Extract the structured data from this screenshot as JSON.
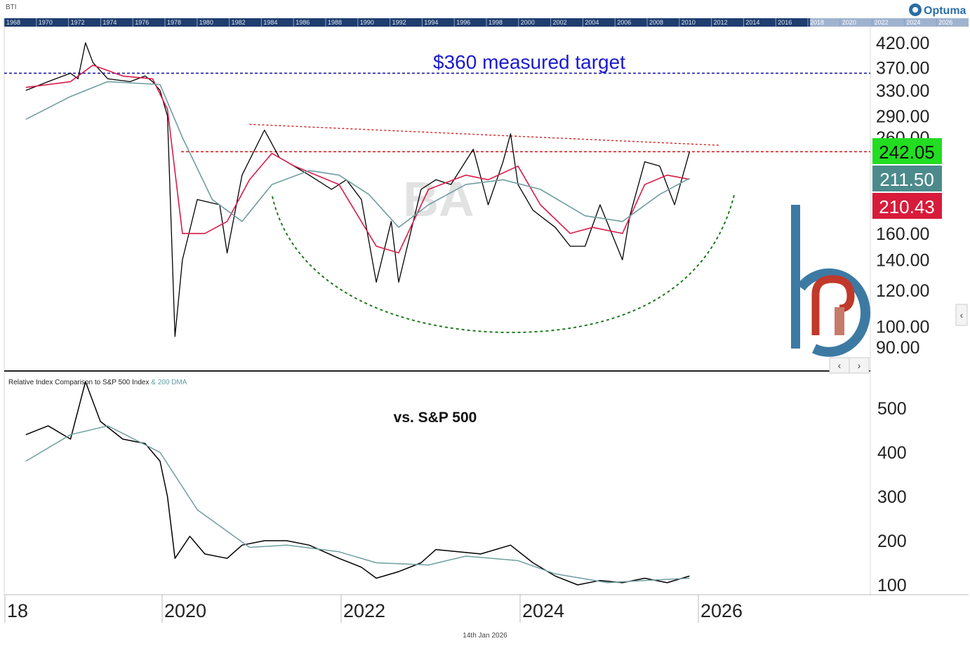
{
  "header": {
    "symbol": "BTI",
    "brand": "Optuma",
    "overview_years": [
      "1968",
      "1970",
      "1972",
      "1974",
      "1976",
      "1978",
      "1980",
      "1982",
      "1984",
      "1986",
      "1988",
      "1990",
      "1992",
      "1994",
      "1996",
      "1998",
      "2000",
      "2002",
      "2004",
      "2006",
      "2008",
      "2010",
      "2012",
      "2014",
      "2016",
      "2018",
      "2020",
      "2022",
      "2024",
      "2026"
    ]
  },
  "watermark": "BA",
  "annotations": {
    "target_label": "$360 measured target",
    "comparison_label": "vs. S&P 500"
  },
  "lower_panel": {
    "title": "Relative Index Comparison to S&P 500 Index",
    "title_suffix": "& 200 DMA"
  },
  "footer": {
    "date": "14th Jan 2026"
  },
  "colors": {
    "price": "#000000",
    "ma_short": "#d81b4a",
    "ma_long": "#6f9ea0",
    "target_line": "#1a1aa8",
    "resistance": "#d42020",
    "cup": "#1f7a1f",
    "badge_last": "#22dd22",
    "badge_ma_long": "#4d8a8c",
    "badge_ma_short": "#d81b3a",
    "logo_blue": "#3d7aa3",
    "logo_red": "#c0392b"
  },
  "chart_data": [
    {
      "type": "line",
      "panel": "price",
      "yscale": "log",
      "ylim": [
        85,
        445
      ],
      "x_ticks": [
        "18",
        "2020",
        "2022",
        "2024",
        "2026"
      ],
      "y_ticks": [
        420,
        370,
        330,
        290,
        260,
        160,
        140,
        120,
        100,
        90
      ],
      "y_tick_labels": [
        "420.00",
        "370.00",
        "330.00",
        "290.00",
        "260.00",
        "160.00",
        "140.00",
        "120.00",
        "100.00",
        "90.00"
      ],
      "last_values": [
        {
          "label": "242.05",
          "value": 242.05,
          "role": "last"
        },
        {
          "label": "211.50",
          "value": 211.5,
          "role": "ma_long"
        },
        {
          "label": "210.43",
          "value": 210.43,
          "role": "ma_short"
        }
      ],
      "series": [
        {
          "role": "price",
          "points": [
            [
              "2018-07",
              330
            ],
            [
              "2018-10",
              345
            ],
            [
              "2019-01",
              360
            ],
            [
              "2019-02",
              350
            ],
            [
              "2019-03",
              420
            ],
            [
              "2019-04",
              380
            ],
            [
              "2019-06",
              350
            ],
            [
              "2019-09",
              345
            ],
            [
              "2019-11",
              355
            ],
            [
              "2019-12",
              345
            ],
            [
              "2020-01",
              330
            ],
            [
              "2020-02",
              290
            ],
            [
              "2020-03",
              95
            ],
            [
              "2020-04",
              140
            ],
            [
              "2020-06",
              190
            ],
            [
              "2020-09",
              185
            ],
            [
              "2020-10",
              145
            ],
            [
              "2020-12",
              215
            ],
            [
              "2021-03",
              270
            ],
            [
              "2021-05",
              235
            ],
            [
              "2021-09",
              215
            ],
            [
              "2021-12",
              200
            ],
            [
              "2022-02",
              210
            ],
            [
              "2022-04",
              190
            ],
            [
              "2022-06",
              125
            ],
            [
              "2022-08",
              170
            ],
            [
              "2022-09",
              125
            ],
            [
              "2022-12",
              200
            ],
            [
              "2023-02",
              210
            ],
            [
              "2023-04",
              205
            ],
            [
              "2023-07",
              245
            ],
            [
              "2023-09",
              185
            ],
            [
              "2023-11",
              230
            ],
            [
              "2023-12",
              265
            ],
            [
              "2024-01",
              205
            ],
            [
              "2024-03",
              180
            ],
            [
              "2024-06",
              165
            ],
            [
              "2024-08",
              150
            ],
            [
              "2024-10",
              150
            ],
            [
              "2024-12",
              185
            ],
            [
              "2025-03",
              140
            ],
            [
              "2025-04",
              175
            ],
            [
              "2025-06",
              230
            ],
            [
              "2025-08",
              225
            ],
            [
              "2025-10",
              185
            ],
            [
              "2025-12",
              242
            ]
          ]
        },
        {
          "role": "ma_short",
          "points": [
            [
              "2018-07",
              335
            ],
            [
              "2019-01",
              345
            ],
            [
              "2019-04",
              375
            ],
            [
              "2019-08",
              355
            ],
            [
              "2019-12",
              350
            ],
            [
              "2020-02",
              300
            ],
            [
              "2020-04",
              160
            ],
            [
              "2020-07",
              160
            ],
            [
              "2020-10",
              170
            ],
            [
              "2021-01",
              210
            ],
            [
              "2021-04",
              240
            ],
            [
              "2021-07",
              225
            ],
            [
              "2022-01",
              205
            ],
            [
              "2022-06",
              150
            ],
            [
              "2022-09",
              145
            ],
            [
              "2023-01",
              200
            ],
            [
              "2023-06",
              215
            ],
            [
              "2023-09",
              210
            ],
            [
              "2024-01",
              225
            ],
            [
              "2024-04",
              185
            ],
            [
              "2024-08",
              160
            ],
            [
              "2024-11",
              165
            ],
            [
              "2025-03",
              160
            ],
            [
              "2025-06",
              205
            ],
            [
              "2025-09",
              215
            ],
            [
              "2025-12",
              210.43
            ]
          ]
        },
        {
          "role": "ma_long",
          "points": [
            [
              "2018-07",
              285
            ],
            [
              "2019-01",
              320
            ],
            [
              "2019-06",
              345
            ],
            [
              "2020-01",
              340
            ],
            [
              "2020-04",
              260
            ],
            [
              "2020-08",
              190
            ],
            [
              "2020-12",
              170
            ],
            [
              "2021-04",
              205
            ],
            [
              "2021-09",
              220
            ],
            [
              "2022-01",
              215
            ],
            [
              "2022-05",
              195
            ],
            [
              "2022-09",
              165
            ],
            [
              "2023-01",
              185
            ],
            [
              "2023-06",
              205
            ],
            [
              "2023-11",
              210
            ],
            [
              "2024-04",
              200
            ],
            [
              "2024-10",
              175
            ],
            [
              "2025-03",
              170
            ],
            [
              "2025-08",
              195
            ],
            [
              "2025-12",
              211.5
            ]
          ]
        }
      ],
      "lines": [
        {
          "role": "target",
          "value": 360
        },
        {
          "role": "resistance",
          "value": 242
        },
        {
          "role": "trend",
          "from": [
            "2021-01",
            278
          ],
          "to": [
            "2026-04",
            250
          ]
        }
      ]
    },
    {
      "type": "line",
      "panel": "relative",
      "title": "Relative Index Comparison to S&P 500 Index",
      "ylim": [
        80,
        560
      ],
      "y_ticks": [
        500,
        400,
        300,
        200,
        100
      ],
      "series": [
        {
          "role": "relative",
          "points": [
            [
              "2018-07",
              440
            ],
            [
              "2018-10",
              460
            ],
            [
              "2019-01",
              430
            ],
            [
              "2019-03",
              560
            ],
            [
              "2019-05",
              470
            ],
            [
              "2019-08",
              430
            ],
            [
              "2019-11",
              420
            ],
            [
              "2020-01",
              380
            ],
            [
              "2020-02",
              300
            ],
            [
              "2020-03",
              160
            ],
            [
              "2020-05",
              210
            ],
            [
              "2020-07",
              170
            ],
            [
              "2020-10",
              160
            ],
            [
              "2020-12",
              190
            ],
            [
              "2021-03",
              200
            ],
            [
              "2021-06",
              200
            ],
            [
              "2021-09",
              190
            ],
            [
              "2022-01",
              160
            ],
            [
              "2022-04",
              140
            ],
            [
              "2022-06",
              115
            ],
            [
              "2022-09",
              130
            ],
            [
              "2022-12",
              150
            ],
            [
              "2023-02",
              180
            ],
            [
              "2023-05",
              175
            ],
            [
              "2023-08",
              170
            ],
            [
              "2023-12",
              190
            ],
            [
              "2024-03",
              150
            ],
            [
              "2024-06",
              120
            ],
            [
              "2024-09",
              100
            ],
            [
              "2024-12",
              110
            ],
            [
              "2025-03",
              105
            ],
            [
              "2025-06",
              115
            ],
            [
              "2025-09",
              105
            ],
            [
              "2025-12",
              120
            ]
          ]
        },
        {
          "role": "dma_200",
          "points": [
            [
              "2018-07",
              380
            ],
            [
              "2019-01",
              440
            ],
            [
              "2019-06",
              460
            ],
            [
              "2020-01",
              400
            ],
            [
              "2020-06",
              270
            ],
            [
              "2021-01",
              185
            ],
            [
              "2021-06",
              190
            ],
            [
              "2022-01",
              175
            ],
            [
              "2022-06",
              150
            ],
            [
              "2023-01",
              145
            ],
            [
              "2023-06",
              165
            ],
            [
              "2024-01",
              155
            ],
            [
              "2024-06",
              125
            ],
            [
              "2025-01",
              105
            ],
            [
              "2025-06",
              110
            ],
            [
              "2025-12",
              115
            ]
          ]
        }
      ]
    }
  ]
}
